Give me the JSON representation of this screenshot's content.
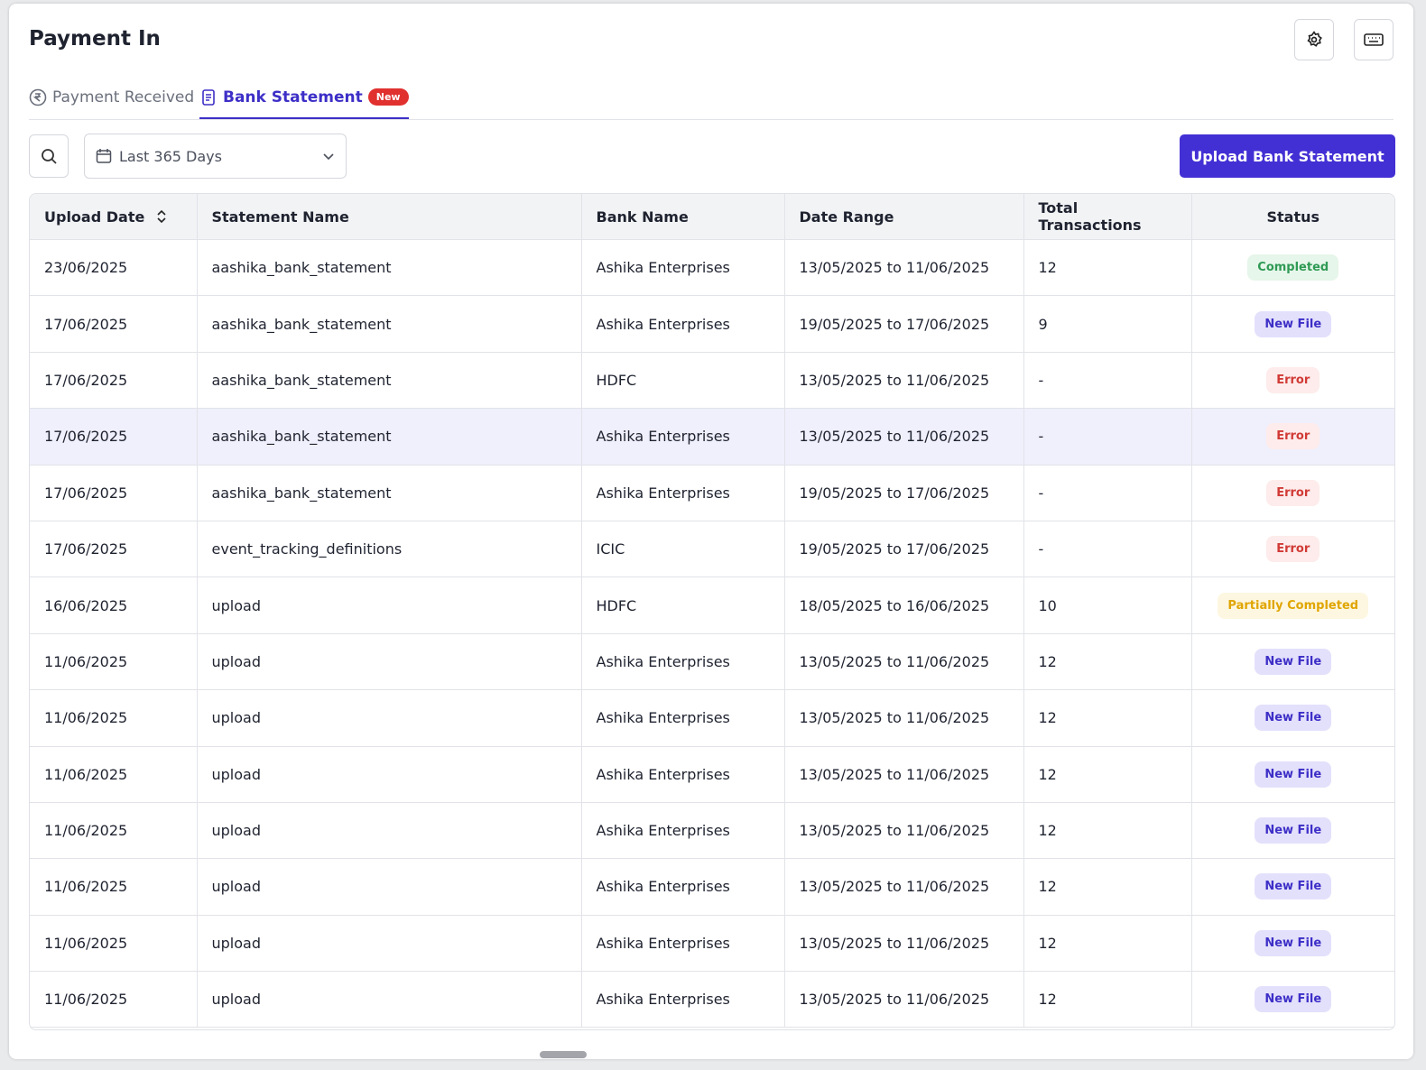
{
  "header": {
    "title": "Payment In"
  },
  "tabs": [
    {
      "label": "Payment Received"
    },
    {
      "label": "Bank Statement",
      "badge": "New"
    }
  ],
  "toolbar": {
    "date_filter": "Last 365 Days",
    "upload_button": "Upload Bank Statement"
  },
  "table": {
    "columns": [
      "Upload Date",
      "Statement Name",
      "Bank Name",
      "Date Range",
      "Total Transactions",
      "Status"
    ],
    "rows": [
      [
        "23/06/2025",
        "aashika_bank_statement",
        "Ashika Enterprises",
        "13/05/2025 to 11/06/2025",
        "12",
        {
          "label": "Completed",
          "color": "#2f9a55",
          "background": "#e6f6ea"
        }
      ],
      [
        "17/06/2025",
        "aashika_bank_statement",
        "Ashika Enterprises",
        "19/05/2025 to 17/06/2025",
        "9",
        {
          "label": "New File",
          "color": "#3d2fc7",
          "background": "#e3e0fb"
        }
      ],
      [
        "17/06/2025",
        "aashika_bank_statement",
        "HDFC",
        "13/05/2025 to 11/06/2025",
        "-",
        {
          "label": "Error",
          "color": "#d13a36",
          "background": "#fdeceb"
        }
      ],
      [
        "17/06/2025",
        "aashika_bank_statement",
        "Ashika Enterprises",
        "13/05/2025 to 11/06/2025",
        "-",
        {
          "label": "Error",
          "color": "#d13a36",
          "background": "#fdeceb"
        }
      ],
      [
        "17/06/2025",
        "aashika_bank_statement",
        "Ashika Enterprises",
        "19/05/2025 to 17/06/2025",
        "-",
        {
          "label": "Error",
          "color": "#d13a36",
          "background": "#fdeceb"
        }
      ],
      [
        "17/06/2025",
        "event_tracking_definitions",
        "ICIC",
        "19/05/2025 to 17/06/2025",
        "-",
        {
          "label": "Error",
          "color": "#d13a36",
          "background": "#fdeceb"
        }
      ],
      [
        "16/06/2025",
        "upload",
        "HDFC",
        "18/05/2025 to 16/06/2025",
        "10",
        {
          "label": "Partially Completed",
          "color": "#e0a500",
          "background": "#fdf7e1"
        }
      ],
      [
        "11/06/2025",
        "upload",
        "Ashika Enterprises",
        "13/05/2025 to 11/06/2025",
        "12",
        {
          "label": "New File",
          "color": "#3d2fc7",
          "background": "#e3e0fb"
        }
      ],
      [
        "11/06/2025",
        "upload",
        "Ashika Enterprises",
        "13/05/2025 to 11/06/2025",
        "12",
        {
          "label": "New File",
          "color": "#3d2fc7",
          "background": "#e3e0fb"
        }
      ],
      [
        "11/06/2025",
        "upload",
        "Ashika Enterprises",
        "13/05/2025 to 11/06/2025",
        "12",
        {
          "label": "New File",
          "color": "#3d2fc7",
          "background": "#e3e0fb"
        }
      ],
      [
        "11/06/2025",
        "upload",
        "Ashika Enterprises",
        "13/05/2025 to 11/06/2025",
        "12",
        {
          "label": "New File",
          "color": "#3d2fc7",
          "background": "#e3e0fb"
        }
      ],
      [
        "11/06/2025",
        "upload",
        "Ashika Enterprises",
        "13/05/2025 to 11/06/2025",
        "12",
        {
          "label": "New File",
          "color": "#3d2fc7",
          "background": "#e3e0fb"
        }
      ],
      [
        "11/06/2025",
        "upload",
        "Ashika Enterprises",
        "13/05/2025 to 11/06/2025",
        "12",
        {
          "label": "New File",
          "color": "#3d2fc7",
          "background": "#e3e0fb"
        }
      ],
      [
        "11/06/2025",
        "upload",
        "Ashika Enterprises",
        "13/05/2025 to 11/06/2025",
        "12",
        {
          "label": "New File",
          "color": "#3d2fc7",
          "background": "#e3e0fb"
        }
      ]
    ]
  }
}
